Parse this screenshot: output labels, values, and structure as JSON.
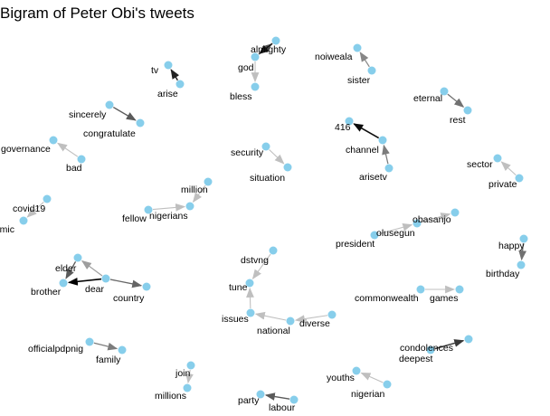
{
  "title": "Bigram of Peter Obi's tweets",
  "colors": {
    "node": "#87ceeb",
    "background": "#ffffff",
    "text": "#000000"
  },
  "chart_data": {
    "type": "network",
    "nodes": [
      {
        "id": "almighty"
      },
      {
        "id": "god"
      },
      {
        "id": "bless"
      },
      {
        "id": "tv"
      },
      {
        "id": "arise"
      },
      {
        "id": "noiweala"
      },
      {
        "id": "sister"
      },
      {
        "id": "eternal"
      },
      {
        "id": "rest"
      },
      {
        "id": "sincerely"
      },
      {
        "id": "congratulate"
      },
      {
        "id": "416"
      },
      {
        "id": "channel"
      },
      {
        "id": "arisetv"
      },
      {
        "id": "governance"
      },
      {
        "id": "bad"
      },
      {
        "id": "security"
      },
      {
        "id": "situation"
      },
      {
        "id": "sector"
      },
      {
        "id": "private"
      },
      {
        "id": "million"
      },
      {
        "id": "nigerians"
      },
      {
        "id": "fellow"
      },
      {
        "id": "covid19"
      },
      {
        "id": "pandemic"
      },
      {
        "id": "obasanjo"
      },
      {
        "id": "olusegun"
      },
      {
        "id": "president"
      },
      {
        "id": "happy"
      },
      {
        "id": "birthday"
      },
      {
        "id": "dstvng"
      },
      {
        "id": "tune"
      },
      {
        "id": "issues"
      },
      {
        "id": "national"
      },
      {
        "id": "diverse"
      },
      {
        "id": "elder"
      },
      {
        "id": "brother"
      },
      {
        "id": "dear"
      },
      {
        "id": "country"
      },
      {
        "id": "commonwealth"
      },
      {
        "id": "games"
      },
      {
        "id": "condolences"
      },
      {
        "id": "deepest"
      },
      {
        "id": "officialpdpnig"
      },
      {
        "id": "family"
      },
      {
        "id": "join"
      },
      {
        "id": "millions"
      },
      {
        "id": "youths"
      },
      {
        "id": "nigerian"
      },
      {
        "id": "party"
      },
      {
        "id": "labour"
      }
    ],
    "edges": [
      {
        "from": "god",
        "to": "almighty",
        "weight": 0.55
      },
      {
        "from": "almighty",
        "to": "god",
        "weight": 0.9
      },
      {
        "from": "god",
        "to": "bless",
        "weight": 0.15
      },
      {
        "from": "arise",
        "to": "tv",
        "weight": 0.85
      },
      {
        "from": "sister",
        "to": "noiweala",
        "weight": 0.4
      },
      {
        "from": "eternal",
        "to": "rest",
        "weight": 0.5
      },
      {
        "from": "sincerely",
        "to": "congratulate",
        "weight": 0.6
      },
      {
        "from": "channel",
        "to": "416",
        "weight": 0.95
      },
      {
        "from": "arisetv",
        "to": "channel",
        "weight": 0.45
      },
      {
        "from": "bad",
        "to": "governance",
        "weight": 0.15
      },
      {
        "from": "security",
        "to": "situation",
        "weight": 0.15
      },
      {
        "from": "private",
        "to": "sector",
        "weight": 0.15
      },
      {
        "from": "million",
        "to": "nigerians",
        "weight": 0.15
      },
      {
        "from": "fellow",
        "to": "nigerians",
        "weight": 0.15
      },
      {
        "from": "covid19",
        "to": "pandemic",
        "weight": 0.15
      },
      {
        "from": "olusegun",
        "to": "obasanjo",
        "weight": 0.15
      },
      {
        "from": "president",
        "to": "olusegun",
        "weight": 0.15
      },
      {
        "from": "happy",
        "to": "birthday",
        "weight": 0.5
      },
      {
        "from": "dstvng",
        "to": "tune",
        "weight": 0.15
      },
      {
        "from": "issues",
        "to": "tune",
        "weight": 0.15
      },
      {
        "from": "national",
        "to": "issues",
        "weight": 0.15
      },
      {
        "from": "diverse",
        "to": "national",
        "weight": 0.15
      },
      {
        "from": "dear",
        "to": "elder",
        "weight": 0.3
      },
      {
        "from": "elder",
        "to": "brother",
        "weight": 0.6
      },
      {
        "from": "dear",
        "to": "brother",
        "weight": 1.0
      },
      {
        "from": "dear",
        "to": "country",
        "weight": 0.55
      },
      {
        "from": "commonwealth",
        "to": "games",
        "weight": 0.15
      },
      {
        "from": "deepest",
        "to": "condolences",
        "weight": 0.75
      },
      {
        "from": "officialpdpnig",
        "to": "family",
        "weight": 0.45
      },
      {
        "from": "join",
        "to": "millions",
        "weight": 0.15
      },
      {
        "from": "nigerian",
        "to": "youths",
        "weight": 0.15
      },
      {
        "from": "labour",
        "to": "party",
        "weight": 0.6
      }
    ]
  }
}
